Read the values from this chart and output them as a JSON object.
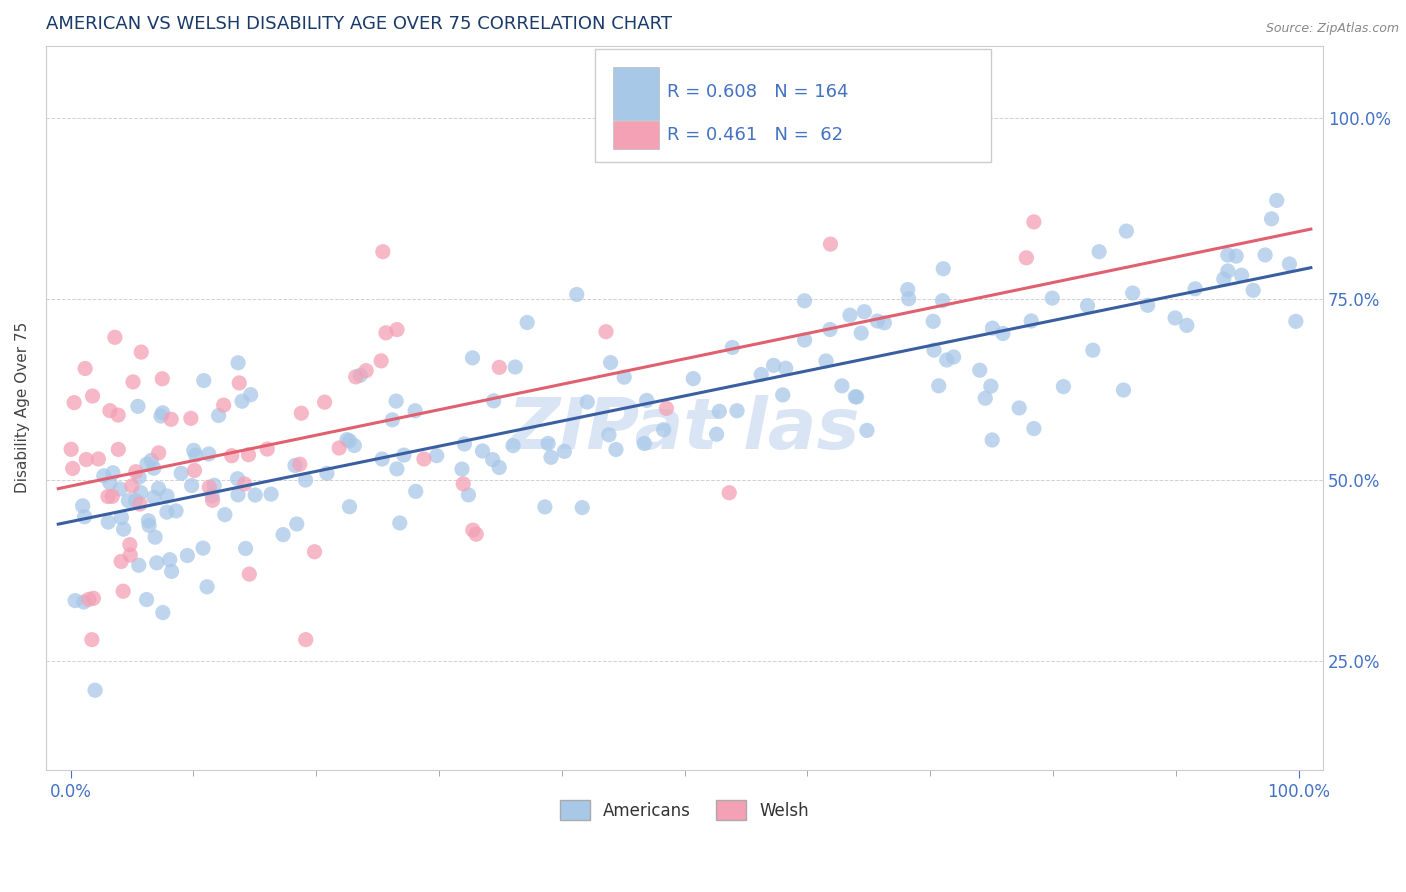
{
  "title": "AMERICAN VS WELSH DISABILITY AGE OVER 75 CORRELATION CHART",
  "source_text": "Source: ZipAtlas.com",
  "watermark_text": "ZIPat las",
  "ylabel": "Disability Age Over 75",
  "xlim": [
    -0.02,
    1.02
  ],
  "ylim": [
    0.1,
    1.1
  ],
  "y_ticks_right": [
    0.25,
    0.5,
    0.75,
    1.0
  ],
  "y_tick_labels_right": [
    "25.0%",
    "50.0%",
    "75.0%",
    "100.0%"
  ],
  "american_color": "#a8c8e8",
  "welsh_color": "#f4a0b5",
  "american_line_color": "#3a5fa0",
  "welsh_line_color": "#e06070",
  "R_american": 0.608,
  "N_american": 164,
  "R_welsh": 0.461,
  "N_welsh": 62,
  "legend_label_american": "Americans",
  "legend_label_welsh": "Welsh",
  "title_color": "#1a3a6a",
  "axis_label_color": "#444444",
  "tick_color": "#4472c4",
  "background_color": "#ffffff",
  "grid_color": "#cccccc",
  "watermark_color": "#c0d4ee"
}
